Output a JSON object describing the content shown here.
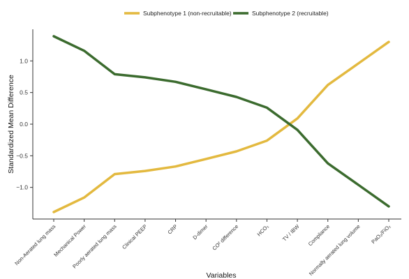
{
  "chart_data": {
    "type": "line",
    "title": "",
    "xlabel": "Variables",
    "ylabel": "Standardized Mean Difference",
    "categories": [
      "Non-Aerated lung mass",
      "Mechanical Power",
      "Poorly aerated lung mass",
      "Clinical PEEP",
      "CRP",
      "D-dimer",
      "CO² difference",
      "HCO₃",
      "TV / IBW",
      "Compliance",
      "Normally aerated lung volume",
      "PaO₂/FiO₂"
    ],
    "series": [
      {
        "name": "Subphenotype 1 (non-recruitable)",
        "color": "#e3b93f",
        "values": [
          -1.39,
          -1.16,
          -0.79,
          -0.74,
          -0.67,
          -0.55,
          -0.43,
          -0.26,
          0.09,
          0.62,
          0.96,
          1.3
        ]
      },
      {
        "name": "Subphenotype 2 (recruitable)",
        "color": "#3b6b2e",
        "values": [
          1.39,
          1.16,
          0.79,
          0.74,
          0.67,
          0.55,
          0.43,
          0.26,
          -0.09,
          -0.62,
          -0.96,
          -1.3
        ]
      }
    ],
    "yticks": [
      "1.0",
      "0.5",
      "0.0",
      "−0.5",
      "−1.0"
    ],
    "ytick_values": [
      1.0,
      0.5,
      0.0,
      -0.5,
      -1.0
    ],
    "ylim": [
      -1.5,
      1.5
    ],
    "grid": false,
    "legend": "top"
  }
}
